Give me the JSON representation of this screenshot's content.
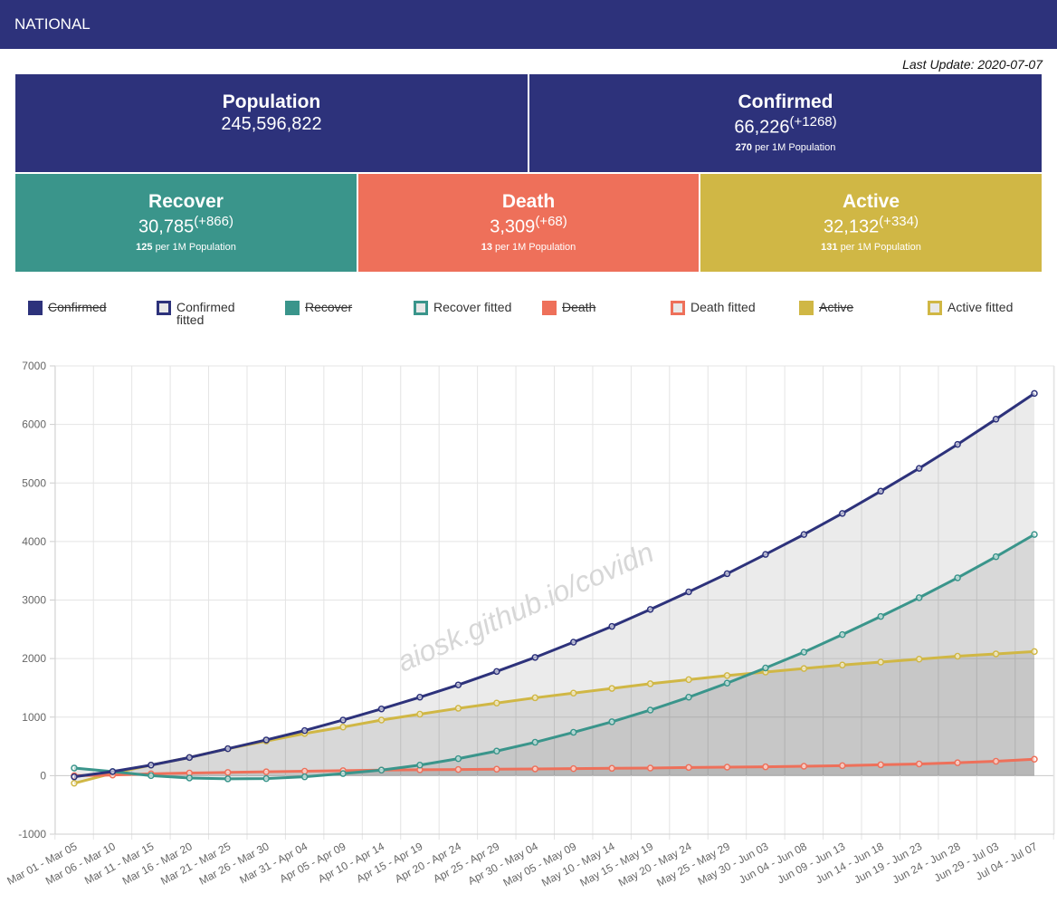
{
  "header": {
    "title": "NATIONAL"
  },
  "last_update": "Last Update: 2020-07-07",
  "cards": {
    "population": {
      "title": "Population",
      "value": "245,596,822",
      "color": "#2d327b"
    },
    "confirmed": {
      "title": "Confirmed",
      "value": "66,226",
      "delta": "(+1268)",
      "per_value": "270",
      "per_text": "per 1M Population",
      "color": "#2d327b"
    },
    "recover": {
      "title": "Recover",
      "value": "30,785",
      "delta": "(+866)",
      "per_value": "125",
      "per_text": "per 1M Population",
      "color": "#3a958b"
    },
    "death": {
      "title": "Death",
      "value": "3,309",
      "delta": "(+68)",
      "per_value": "13",
      "per_text": "per 1M Population",
      "color": "#ee705a"
    },
    "active": {
      "title": "Active",
      "value": "32,132",
      "delta": "(+334)",
      "per_value": "131",
      "per_text": "per 1M Population",
      "color": "#d0b745"
    }
  },
  "legend": [
    {
      "label": "Confirmed",
      "color": "#2d327b",
      "filled": true,
      "hidden": true
    },
    {
      "label": "Confirmed fitted",
      "color": "#2d327b",
      "filled": false,
      "hidden": false
    },
    {
      "label": "Recover",
      "color": "#3a958b",
      "filled": true,
      "hidden": true
    },
    {
      "label": "Recover fitted",
      "color": "#3a958b",
      "filled": false,
      "hidden": false
    },
    {
      "label": "Death",
      "color": "#ee705a",
      "filled": true,
      "hidden": true
    },
    {
      "label": "Death fitted",
      "color": "#ee705a",
      "filled": false,
      "hidden": false
    },
    {
      "label": "Active",
      "color": "#d0b745",
      "filled": true,
      "hidden": true
    },
    {
      "label": "Active fitted",
      "color": "#d0b745",
      "filled": false,
      "hidden": false
    }
  ],
  "watermark": "aiosk.github.io/covidn",
  "chart_data": {
    "type": "line",
    "categories": [
      "Mar 01 - Mar 05",
      "Mar 06 - Mar 10",
      "Mar 11 - Mar 15",
      "Mar 16 - Mar 20",
      "Mar 21 - Mar 25",
      "Mar 26 - Mar 30",
      "Mar 31 - Apr 04",
      "Apr 05 - Apr 09",
      "Apr 10 - Apr 14",
      "Apr 15 - Apr 19",
      "Apr 20 - Apr 24",
      "Apr 25 - Apr 29",
      "Apr 30 - May 04",
      "May 05 - May 09",
      "May 10 - May 14",
      "May 15 - May 19",
      "May 20 - May 24",
      "May 25 - May 29",
      "May 30 - Jun 03",
      "Jun 04 - Jun 08",
      "Jun 09 - Jun 13",
      "Jun 14 - Jun 18",
      "Jun 19 - Jun 23",
      "Jun 24 - Jun 28",
      "Jun 29 - Jul 03",
      "Jul 04 - Jul 07"
    ],
    "ylim": [
      -1000,
      7000
    ],
    "yticks": [
      -1000,
      0,
      1000,
      2000,
      3000,
      4000,
      5000,
      6000,
      7000
    ],
    "grid": true,
    "series": [
      {
        "name": "Active fitted",
        "color": "#d0b745",
        "fill": "rgba(0,0,0,0.08)",
        "values": [
          -130,
          40,
          180,
          310,
          460,
          590,
          720,
          830,
          950,
          1050,
          1150,
          1240,
          1330,
          1410,
          1490,
          1570,
          1640,
          1710,
          1770,
          1830,
          1890,
          1940,
          1990,
          2040,
          2080,
          2120
        ]
      },
      {
        "name": "Death fitted",
        "color": "#ee705a",
        "fill": "rgba(0,0,0,0.08)",
        "values": [
          0,
          10,
          30,
          45,
          55,
          65,
          75,
          85,
          95,
          100,
          105,
          110,
          115,
          120,
          125,
          130,
          140,
          145,
          150,
          160,
          170,
          185,
          200,
          220,
          245,
          280
        ]
      },
      {
        "name": "Recover fitted",
        "color": "#3a958b",
        "fill": "rgba(0,0,0,0.08)",
        "values": [
          130,
          70,
          0,
          -40,
          -55,
          -50,
          -20,
          35,
          95,
          180,
          290,
          420,
          570,
          740,
          920,
          1120,
          1340,
          1580,
          1840,
          2110,
          2410,
          2720,
          3040,
          3380,
          3740,
          4120
        ]
      },
      {
        "name": "Confirmed fitted",
        "color": "#2d327b",
        "fill": "rgba(0,0,0,0.08)",
        "values": [
          -20,
          70,
          180,
          310,
          460,
          610,
          770,
          950,
          1140,
          1340,
          1550,
          1780,
          2020,
          2280,
          2550,
          2840,
          3140,
          3450,
          3780,
          4120,
          4480,
          4860,
          5250,
          5660,
          6090,
          6530
        ]
      }
    ]
  }
}
